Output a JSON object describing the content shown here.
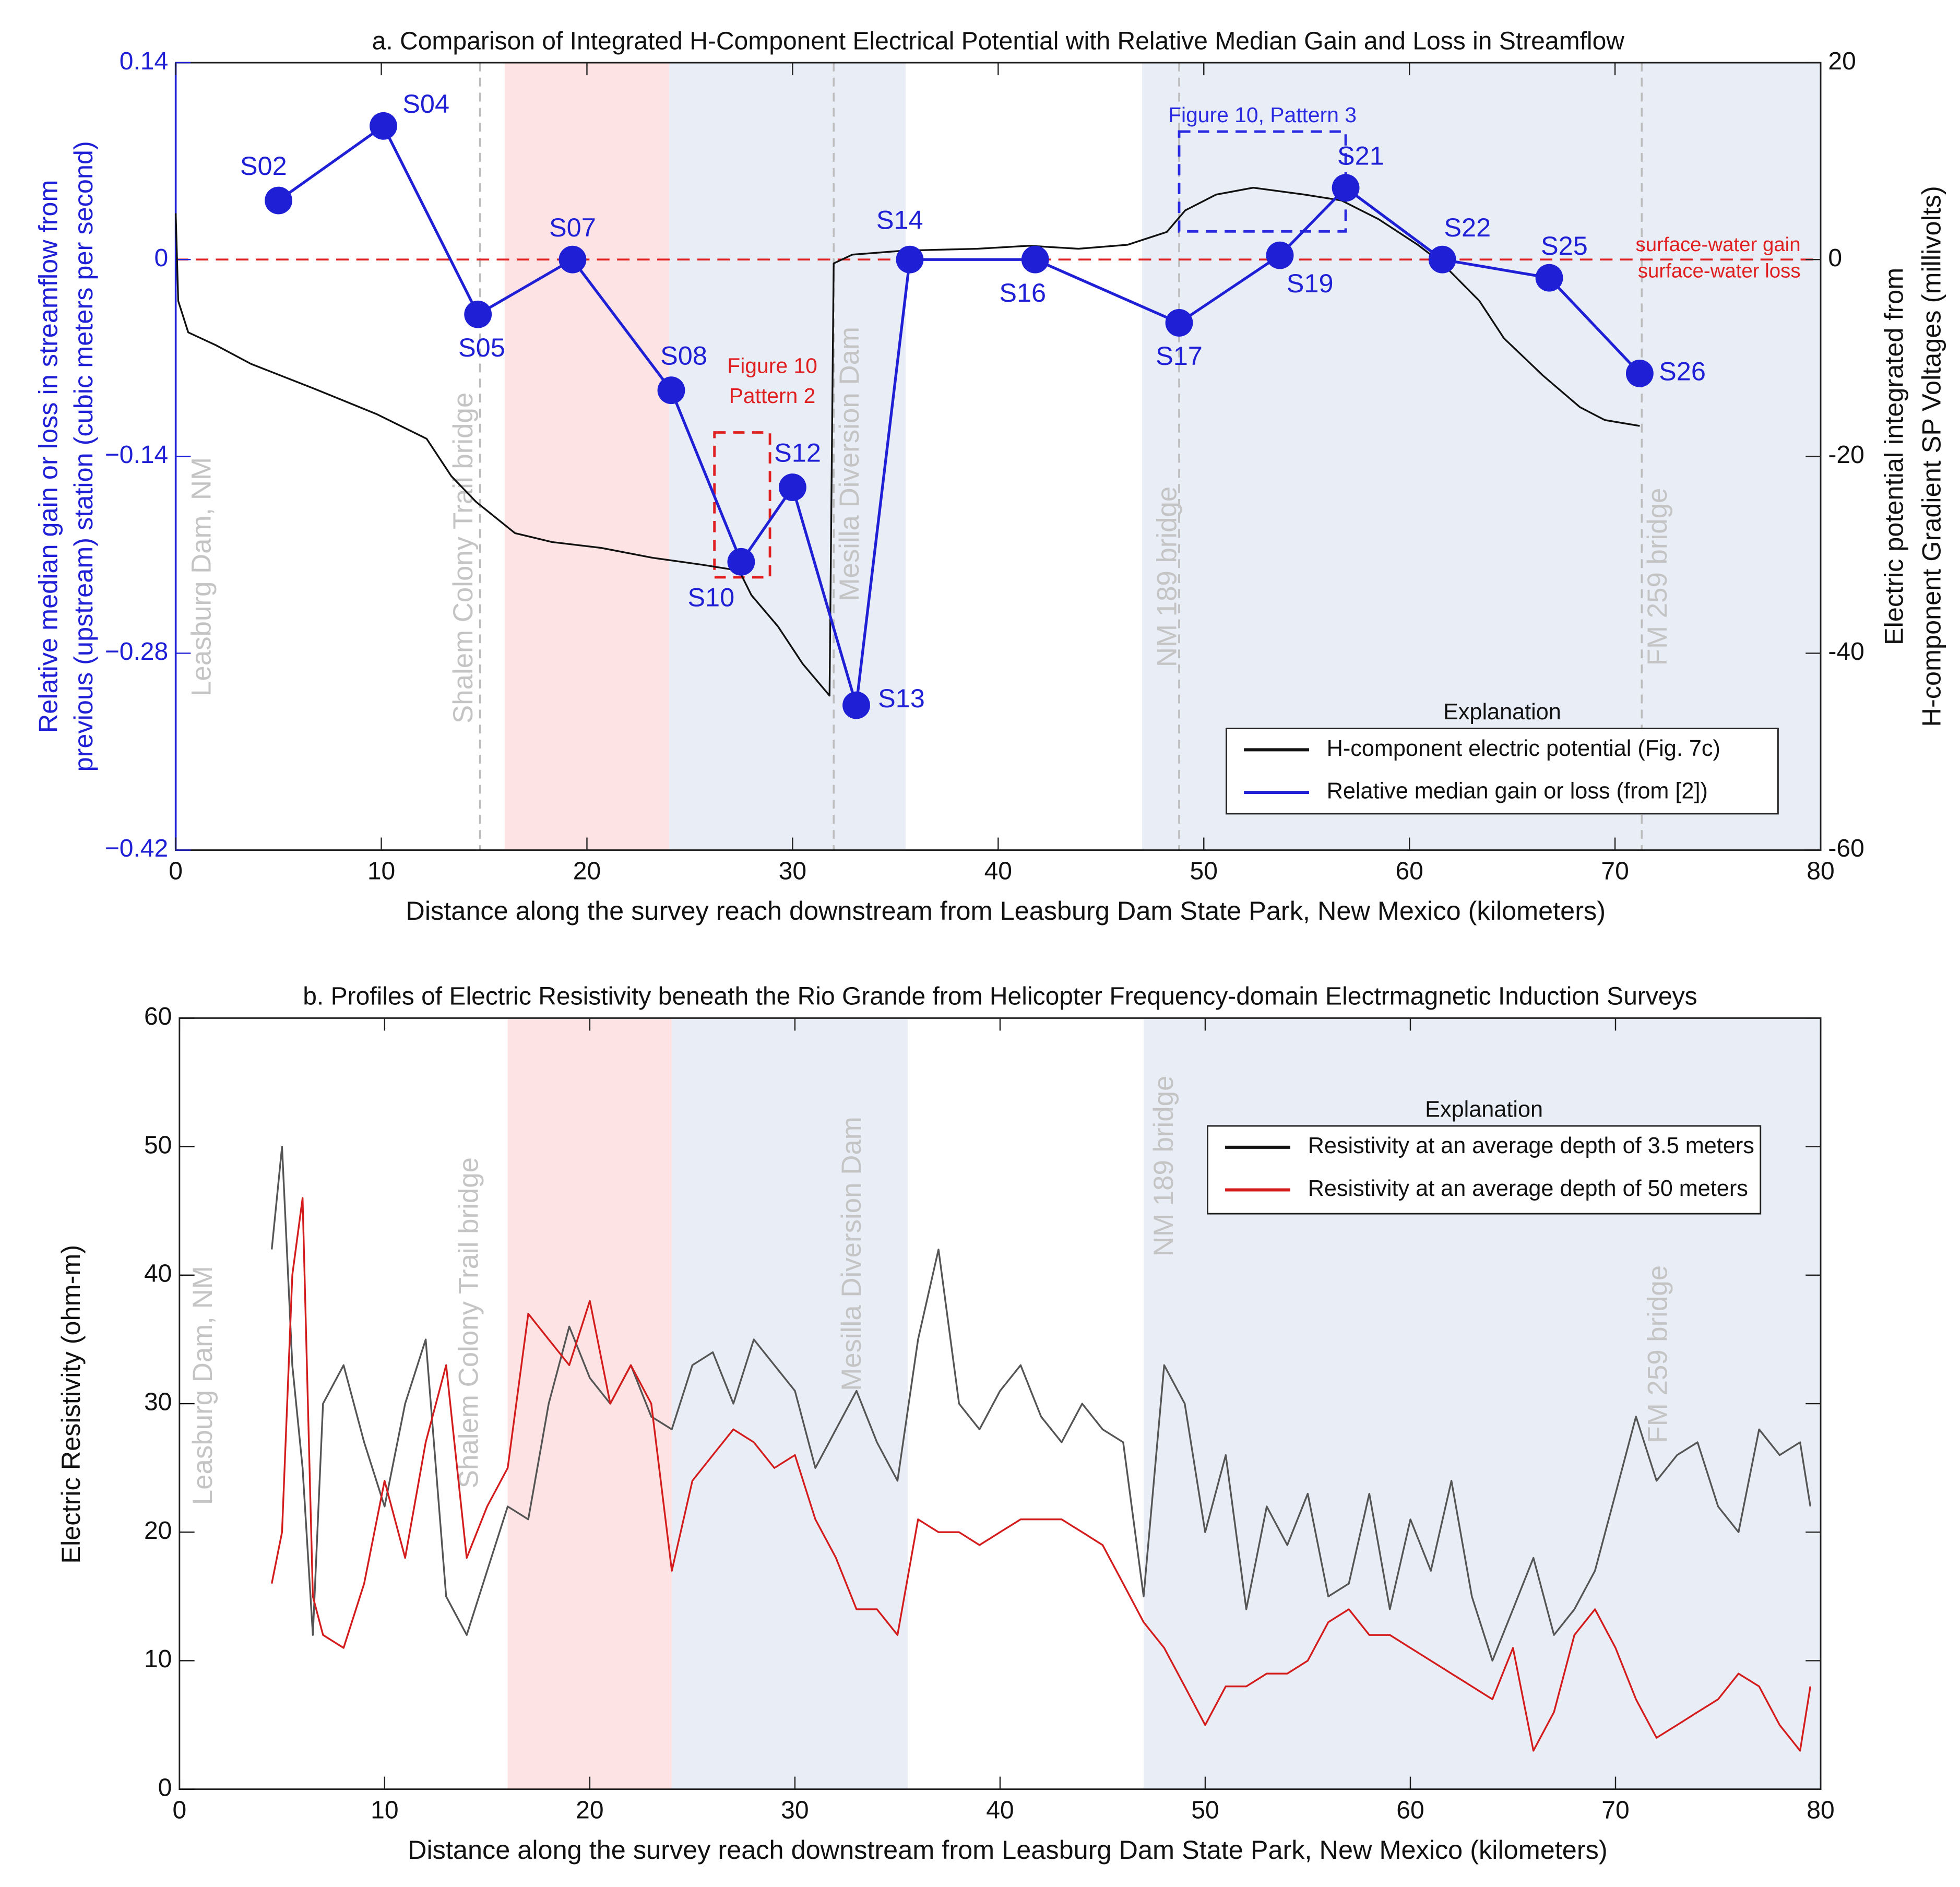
{
  "chart_data": [
    {
      "type": "line",
      "title": "a. Comparison of Integrated H-Component Electrical Potential with Relative Median Gain and Loss in Streamflow",
      "xlabel": "Distance along the survey reach downstream from Leasburg Dam State Park, New Mexico (kilometers)",
      "ylabel": [
        "Relative median gain  or loss in streamflow from",
        "previous (upstream) station (cubic meters per second)"
      ],
      "y2label": [
        "Electric potential integrated from",
        "H-component Gradient SP Voltages (millivolts)"
      ],
      "xlim": [
        0,
        80
      ],
      "xticks": [
        0,
        10,
        20,
        30,
        40,
        50,
        60,
        70,
        80
      ],
      "ylim": [
        -0.42,
        0.14
      ],
      "yticks": [
        {
          "value": -0.42,
          "label": "−0.42"
        },
        {
          "value": -0.28,
          "label": "−0.28"
        },
        {
          "value": -0.14,
          "label": "−0.14"
        },
        0,
        0.14
      ],
      "y2lim": [
        -60,
        20
      ],
      "y2ticks": [
        -60,
        -40,
        -20,
        0,
        20
      ],
      "ycolor": "#1f1fd6",
      "shaded_regions": [
        {
          "x": [
            16,
            24
          ],
          "color": "#fde3e3"
        },
        {
          "x": [
            24,
            35.5
          ],
          "color": "#e9edf6"
        },
        {
          "x": [
            47,
            80
          ],
          "color": "#e9edf6"
        }
      ],
      "reference_lines": [
        {
          "x": 0,
          "label": "Leasburg Dam, NM"
        },
        {
          "x": 14.8,
          "label": "Shalem Colony Trail bridge"
        },
        {
          "x": 32,
          "label": "Mesilla Diversion Dam"
        },
        {
          "x": 48.8,
          "label": "NM 189 bridge"
        },
        {
          "x": 71.3,
          "label": "FM 259 bridge"
        }
      ],
      "reference_line_style": "dashed",
      "hline": {
        "y": 0,
        "color": "#e02020",
        "labels": [
          "surface-water gain",
          "surface-water loss"
        ]
      },
      "annotations": [
        {
          "text": [
            "Figure 10",
            "Pattern 2"
          ],
          "color": "#e02020",
          "box": {
            "x": [
              26.2,
              28.9
            ],
            "y": [
              -0.123,
              -0.226
            ]
          }
        },
        {
          "text": [
            "Figure 10, Pattern 3"
          ],
          "color": "#2a2ae0",
          "box": {
            "x": [
              48.8,
              56.9
            ],
            "y": [
              0.091,
              0.02
            ]
          }
        }
      ],
      "legend_title": "Explanation",
      "legend": "lower right",
      "series": [
        {
          "name": "H-component electric potential (Fig. 7c)",
          "color": "#111111",
          "axis": "y2",
          "x": [
            0,
            0.12,
            0.61,
            1.95,
            3.66,
            6.71,
            9.76,
            12.2,
            13.4,
            14.6,
            16.5,
            18.3,
            20.7,
            23.2,
            25.6,
            27.4,
            28.0,
            29.3,
            30.5,
            31.8,
            32.0,
            32.9,
            35.4,
            39.0,
            41.5,
            43.9,
            46.3,
            48.2,
            49.1,
            50.6,
            52.4,
            54.9,
            56.7,
            58.5,
            60.4,
            61.6,
            63.4,
            64.6,
            66.5,
            68.3,
            69.5,
            71.2
          ],
          "values": [
            4.7,
            -4.2,
            -7.4,
            -8.7,
            -10.6,
            -13.1,
            -15.7,
            -18.2,
            -22.0,
            -24.6,
            -27.8,
            -28.7,
            -29.3,
            -30.3,
            -31.0,
            -31.6,
            -34.1,
            -37.3,
            -41.1,
            -44.3,
            -0.4,
            0.5,
            0.9,
            1.1,
            1.4,
            1.1,
            1.5,
            2.8,
            5.0,
            6.6,
            7.3,
            6.6,
            6.0,
            4.1,
            1.5,
            -0.4,
            -4.2,
            -8.0,
            -11.8,
            -15.0,
            -16.3,
            -16.9
          ]
        },
        {
          "name": "Relative median gain or loss (from [2])",
          "color": "#1f1fd6",
          "x": [
            5.0,
            10.1,
            14.7,
            19.3,
            24.1,
            27.5,
            30.0,
            33.1,
            35.7,
            41.8,
            48.8,
            53.7,
            56.9,
            61.6,
            66.8,
            71.2
          ],
          "values": [
            0.042,
            0.095,
            -0.039,
            0,
            -0.093,
            -0.215,
            -0.162,
            -0.317,
            0,
            0,
            -0.045,
            0.003,
            0.051,
            0,
            -0.013,
            -0.081
          ],
          "point_labels": [
            "S02",
            "S04",
            "S05",
            "S07",
            "S08",
            "S10",
            "S12",
            "S13",
            "S14",
            "S16",
            "S17",
            "S19",
            "S21",
            "S22",
            "S25",
            "S26"
          ],
          "markers": true
        }
      ]
    },
    {
      "type": "line",
      "title": "b. Profiles of Electric Resistivity beneath the Rio Grande from Helicopter Frequency-domain Electrmagnetic Induction Surveys",
      "xlabel": "Distance along the survey reach downstream from Leasburg Dam State Park, New Mexico (kilometers)",
      "ylabel": [
        "Electric Resistivity (ohm-m)"
      ],
      "xlim": [
        0,
        80
      ],
      "xticks": [
        0,
        10,
        20,
        30,
        40,
        50,
        60,
        70,
        80
      ],
      "ylim": [
        0,
        60
      ],
      "yticks": [
        0,
        10,
        20,
        30,
        40,
        50,
        60
      ],
      "ycolor": "#111111",
      "shaded_regions": [
        {
          "x": [
            16,
            24
          ],
          "color": "#fde3e3"
        },
        {
          "x": [
            24,
            35.5
          ],
          "color": "#e9edf6"
        },
        {
          "x": [
            47,
            80
          ],
          "color": "#e9edf6"
        }
      ],
      "reference_lines": [
        {
          "x": 0,
          "label": "Leasburg Dam, NM"
        },
        {
          "x": 14.8,
          "label": "Shalem Colony Trail bridge"
        },
        {
          "x": 32,
          "label": "Mesilla Diversion Dam"
        },
        {
          "x": 48.8,
          "label": "NM 189 bridge"
        },
        {
          "x": 71.3,
          "label": "FM 259 bridge"
        }
      ],
      "reference_line_style": "none",
      "legend_title": "Explanation",
      "legend": "upper right",
      "series": [
        {
          "name": "Resistivity at an average depth of 3.5 meters",
          "color": "#555555",
          "x": [
            4.5,
            5,
            5.5,
            6,
            6.5,
            7,
            8,
            9,
            10,
            11,
            12,
            13,
            14,
            15,
            16,
            17,
            18,
            19,
            20,
            21,
            22,
            23,
            24,
            25,
            26,
            27,
            28,
            29,
            30,
            31,
            32,
            33,
            34,
            35,
            36,
            37,
            38,
            39,
            40,
            41,
            42,
            43,
            44,
            45,
            46,
            47,
            48,
            49,
            50,
            51,
            52,
            53,
            54,
            55,
            56,
            57,
            58,
            59,
            60,
            61,
            62,
            63,
            64,
            65,
            66,
            67,
            68,
            69,
            70,
            71,
            72,
            73,
            74,
            75,
            76,
            77,
            78,
            79,
            79.5
          ],
          "values": [
            42,
            50,
            33,
            25,
            12,
            30,
            33,
            27,
            22,
            30,
            35,
            15,
            12,
            17,
            22,
            21,
            30,
            36,
            32,
            30,
            33,
            29,
            28,
            33,
            34,
            30,
            35,
            33,
            31,
            25,
            28,
            31,
            27,
            24,
            35,
            42,
            30,
            28,
            31,
            33,
            29,
            27,
            30,
            28,
            27,
            15,
            33,
            30,
            20,
            26,
            14,
            22,
            19,
            23,
            15,
            16,
            23,
            14,
            21,
            17,
            24,
            15,
            10,
            14,
            18,
            12,
            14,
            17,
            23,
            29,
            24,
            26,
            27,
            22,
            20,
            28,
            26,
            27,
            22
          ]
        },
        {
          "name": "Resistivity at an average depth of 50 meters",
          "color": "#d41c1c",
          "x": [
            4.5,
            5,
            5.5,
            6,
            6.5,
            7,
            8,
            9,
            10,
            11,
            12,
            13,
            14,
            15,
            16,
            17,
            18,
            19,
            20,
            21,
            22,
            23,
            24,
            25,
            26,
            27,
            28,
            29,
            30,
            31,
            32,
            33,
            34,
            35,
            36,
            37,
            38,
            39,
            40,
            41,
            42,
            43,
            44,
            45,
            46,
            47,
            48,
            49,
            50,
            51,
            52,
            53,
            54,
            55,
            56,
            57,
            58,
            59,
            60,
            61,
            62,
            63,
            64,
            65,
            66,
            67,
            68,
            69,
            70,
            71,
            72,
            73,
            74,
            75,
            76,
            77,
            78,
            79,
            79.5
          ],
          "values": [
            16,
            20,
            40,
            46,
            15,
            12,
            11,
            16,
            24,
            18,
            27,
            33,
            18,
            22,
            25,
            37,
            35,
            33,
            38,
            30,
            33,
            30,
            17,
            24,
            26,
            28,
            27,
            25,
            26,
            21,
            18,
            14,
            14,
            12,
            21,
            20,
            20,
            19,
            20,
            21,
            21,
            21,
            20,
            19,
            16,
            13,
            11,
            8,
            5,
            8,
            8,
            9,
            9,
            10,
            13,
            14,
            12,
            12,
            11,
            10,
            9,
            8,
            7,
            11,
            3,
            6,
            12,
            14,
            11,
            7,
            4,
            5,
            6,
            7,
            9,
            8,
            5,
            3,
            8
          ]
        }
      ]
    }
  ]
}
